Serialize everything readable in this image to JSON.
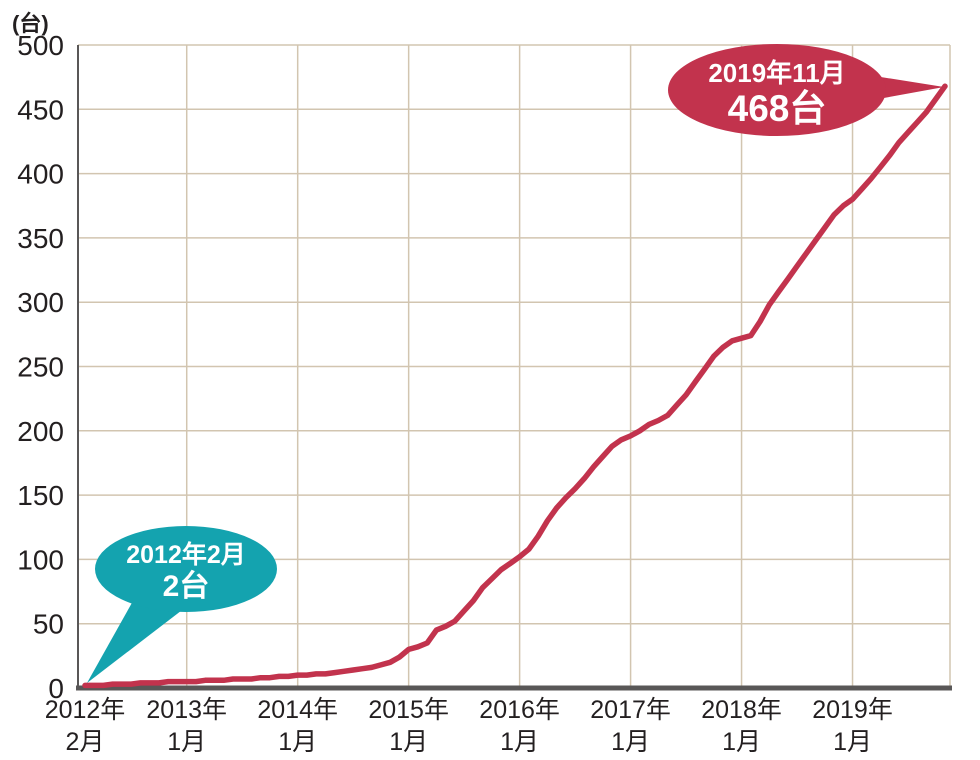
{
  "chart_data": {
    "type": "line",
    "title": "",
    "unit_label": "(台)",
    "xlabel": "",
    "ylabel": "",
    "ylim": [
      0,
      500
    ],
    "ytick_step": 50,
    "yticks": [
      0,
      50,
      100,
      150,
      200,
      250,
      300,
      350,
      400,
      450,
      500
    ],
    "grid": true,
    "grid_color": "#d2c5b0",
    "axis_color": "#595757",
    "text_color": "#231f20",
    "x_start_label": "2012年2月",
    "x_end_label": "2019年11月",
    "x_frequency": "monthly",
    "xticks": [
      {
        "index": 0,
        "year": "2012年",
        "month": "2月"
      },
      {
        "index": 11,
        "year": "2013年",
        "month": "1月"
      },
      {
        "index": 23,
        "year": "2014年",
        "month": "1月"
      },
      {
        "index": 35,
        "year": "2015年",
        "month": "1月"
      },
      {
        "index": 47,
        "year": "2016年",
        "month": "1月"
      },
      {
        "index": 59,
        "year": "2017年",
        "month": "1月"
      },
      {
        "index": 71,
        "year": "2018年",
        "month": "1月"
      },
      {
        "index": 83,
        "year": "2019年",
        "month": "1月"
      }
    ],
    "series": [
      {
        "name": "",
        "color": "#c2334d",
        "values": [
          2,
          2,
          2,
          3,
          3,
          3,
          4,
          4,
          4,
          5,
          5,
          5,
          5,
          6,
          6,
          6,
          7,
          7,
          7,
          8,
          8,
          9,
          9,
          10,
          10,
          11,
          11,
          12,
          13,
          14,
          15,
          16,
          18,
          20,
          24,
          30,
          32,
          35,
          45,
          48,
          52,
          60,
          68,
          78,
          85,
          92,
          97,
          102,
          108,
          118,
          130,
          140,
          148,
          155,
          163,
          172,
          180,
          188,
          193,
          196,
          200,
          205,
          208,
          212,
          220,
          228,
          238,
          248,
          258,
          265,
          270,
          272,
          274,
          285,
          298,
          308,
          318,
          328,
          338,
          348,
          358,
          368,
          375,
          380,
          388,
          396,
          405,
          414,
          424,
          432,
          440,
          448,
          458,
          468
        ]
      }
    ]
  },
  "annotations": {
    "start": {
      "line1": "2012年2月",
      "line2": "2台",
      "color": "#14a3af",
      "text_color": "#ffffff"
    },
    "end": {
      "line1": "2019年11月",
      "line2": "468台",
      "color": "#c2334d",
      "text_color": "#ffffff"
    }
  }
}
